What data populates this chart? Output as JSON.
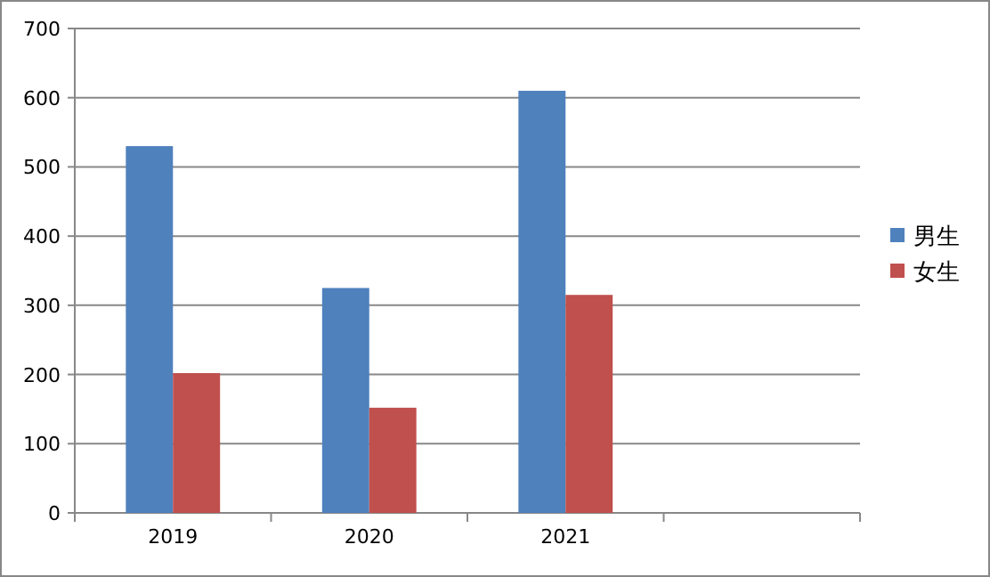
{
  "chart_data": {
    "type": "bar",
    "categories": [
      "2019",
      "2020",
      "2021",
      null
    ],
    "series": [
      {
        "name": "男生",
        "color": "#4f81bd",
        "values": [
          530,
          325,
          610,
          null
        ]
      },
      {
        "name": "女生",
        "color": "#c0504d",
        "values": [
          202,
          152,
          315,
          null
        ]
      }
    ],
    "ylim": [
      0,
      700
    ],
    "yticks": [
      0,
      100,
      200,
      300,
      400,
      500,
      600,
      700
    ],
    "grid": "y",
    "legend": "right"
  }
}
